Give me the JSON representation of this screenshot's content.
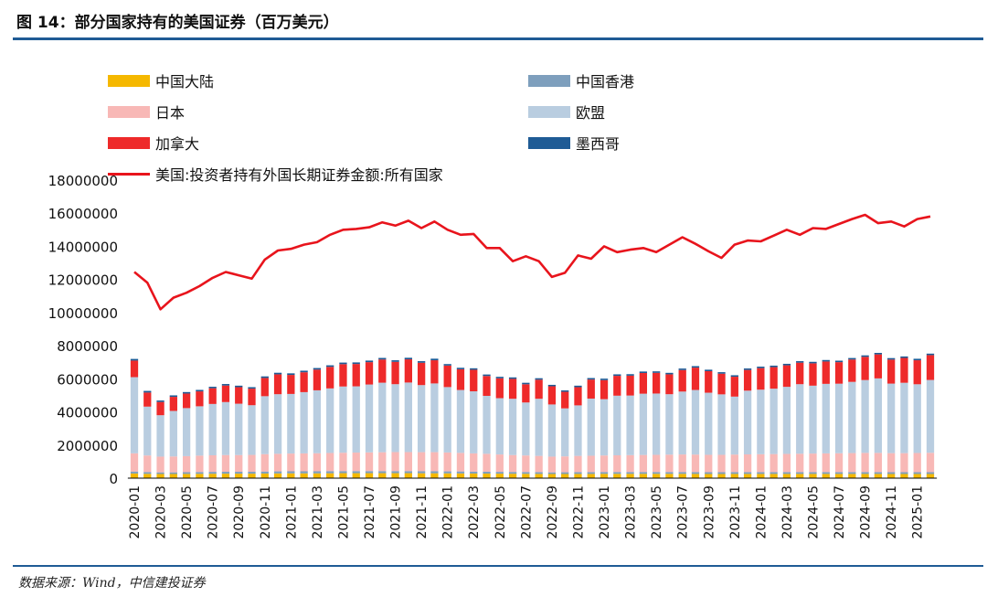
{
  "header": {
    "title": "图 14：部分国家持有的美国证券（百万美元）"
  },
  "footer": {
    "source": "数据来源：Wind，中信建投证券"
  },
  "colors": {
    "china": "#f5b800",
    "hongkong": "#7e9fbd",
    "japan": "#f8b8b6",
    "eu": "#b9cde0",
    "canada": "#ee2a2a",
    "mexico": "#1f5b95",
    "total": "#e8141c",
    "header_rule": "#1f5b95"
  },
  "chart_data": {
    "type": "bar",
    "stacked": true,
    "x": [
      "2020-01",
      "2020-02",
      "2020-03",
      "2020-04",
      "2020-05",
      "2020-06",
      "2020-07",
      "2020-08",
      "2020-09",
      "2020-10",
      "2020-11",
      "2020-12",
      "2021-01",
      "2021-02",
      "2021-03",
      "2021-04",
      "2021-05",
      "2021-06",
      "2021-07",
      "2021-08",
      "2021-09",
      "2021-10",
      "2021-11",
      "2021-12",
      "2022-01",
      "2022-02",
      "2022-03",
      "2022-04",
      "2022-05",
      "2022-06",
      "2022-07",
      "2022-08",
      "2022-09",
      "2022-10",
      "2022-11",
      "2022-12",
      "2023-01",
      "2023-02",
      "2023-03",
      "2023-04",
      "2023-05",
      "2023-06",
      "2023-07",
      "2023-08",
      "2023-09",
      "2023-10",
      "2023-11",
      "2023-12",
      "2024-01",
      "2024-02",
      "2024-03",
      "2024-04",
      "2024-05",
      "2024-06",
      "2024-07",
      "2024-08",
      "2024-09",
      "2024-10",
      "2024-11",
      "2024-12",
      "2025-01",
      "2025-02"
    ],
    "x_tick_labels": [
      "2020-01",
      "2020-03",
      "2020-05",
      "2020-07",
      "2020-09",
      "2020-11",
      "2021-01",
      "2021-03",
      "2021-05",
      "2021-07",
      "2021-09",
      "2021-11",
      "2022-01",
      "2022-03",
      "2022-05",
      "2022-07",
      "2022-09",
      "2022-11",
      "2023-01",
      "2023-03",
      "2023-05",
      "2023-07",
      "2023-09",
      "2023-11",
      "2024-01",
      "2024-03",
      "2024-05",
      "2024-07",
      "2024-09",
      "2024-11",
      "2025-01"
    ],
    "y_ticks": [
      "0",
      "2000000",
      "4000000",
      "6000000",
      "8000000",
      "10000000",
      "12000000",
      "14000000",
      "16000000",
      "18000000"
    ],
    "ylim": [
      0,
      18000000
    ],
    "legend_position": "top",
    "series": [
      {
        "name": "中国大陆",
        "color_key": "china",
        "values": [
          280000,
          260000,
          250000,
          250000,
          255000,
          260000,
          265000,
          270000,
          270000,
          270000,
          280000,
          285000,
          290000,
          290000,
          290000,
          295000,
          300000,
          300000,
          300000,
          300000,
          300000,
          300000,
          295000,
          295000,
          290000,
          285000,
          280000,
          275000,
          270000,
          265000,
          260000,
          255000,
          250000,
          250000,
          255000,
          255000,
          260000,
          260000,
          260000,
          260000,
          260000,
          260000,
          260000,
          255000,
          250000,
          250000,
          255000,
          255000,
          255000,
          255000,
          255000,
          255000,
          255000,
          255000,
          255000,
          255000,
          255000,
          255000,
          250000,
          250000,
          250000,
          250000
        ]
      },
      {
        "name": "中国香港",
        "color_key": "hongkong",
        "values": [
          120000,
          110000,
          100000,
          100000,
          105000,
          110000,
          115000,
          115000,
          115000,
          115000,
          120000,
          125000,
          125000,
          125000,
          125000,
          125000,
          125000,
          125000,
          125000,
          125000,
          125000,
          125000,
          125000,
          125000,
          120000,
          120000,
          115000,
          115000,
          110000,
          110000,
          110000,
          110000,
          100000,
          105000,
          110000,
          110000,
          110000,
          110000,
          110000,
          110000,
          110000,
          110000,
          110000,
          110000,
          110000,
          110000,
          110000,
          110000,
          110000,
          110000,
          110000,
          110000,
          110000,
          110000,
          110000,
          110000,
          110000,
          110000,
          110000,
          110000,
          110000,
          110000
        ]
      },
      {
        "name": "日本",
        "color_key": "japan",
        "values": [
          1100000,
          1000000,
          950000,
          960000,
          970000,
          990000,
          1000000,
          1010000,
          1010000,
          1020000,
          1050000,
          1060000,
          1070000,
          1080000,
          1090000,
          1100000,
          1110000,
          1120000,
          1130000,
          1140000,
          1150000,
          1150000,
          1150000,
          1150000,
          1140000,
          1120000,
          1100000,
          1080000,
          1050000,
          1020000,
          1000000,
          980000,
          950000,
          960000,
          980000,
          990000,
          1000000,
          1010000,
          1020000,
          1030000,
          1040000,
          1050000,
          1060000,
          1060000,
          1050000,
          1050000,
          1060000,
          1070000,
          1080000,
          1090000,
          1100000,
          1110000,
          1120000,
          1130000,
          1140000,
          1150000,
          1160000,
          1160000,
          1150000,
          1150000,
          1160000,
          1170000
        ]
      },
      {
        "name": "欧盟",
        "color_key": "eu",
        "values": [
          4600000,
          2950000,
          2500000,
          2750000,
          2900000,
          2980000,
          3100000,
          3200000,
          3100000,
          3000000,
          3500000,
          3600000,
          3600000,
          3700000,
          3800000,
          3900000,
          4000000,
          4000000,
          4100000,
          4200000,
          4100000,
          4200000,
          4050000,
          4150000,
          3950000,
          3800000,
          3750000,
          3500000,
          3400000,
          3400000,
          3200000,
          3450000,
          3150000,
          2900000,
          3050000,
          3450000,
          3400000,
          3600000,
          3600000,
          3700000,
          3700000,
          3650000,
          3800000,
          3900000,
          3750000,
          3650000,
          3500000,
          3850000,
          3900000,
          3950000,
          4050000,
          4200000,
          4100000,
          4200000,
          4200000,
          4300000,
          4400000,
          4500000,
          4200000,
          4250000,
          4150000,
          4400000
        ]
      },
      {
        "name": "加拿大",
        "color_key": "canada",
        "values": [
          1000000,
          850000,
          800000,
          850000,
          880000,
          900000,
          950000,
          1000000,
          1000000,
          1000000,
          1100000,
          1200000,
          1150000,
          1200000,
          1250000,
          1300000,
          1350000,
          1350000,
          1350000,
          1400000,
          1350000,
          1400000,
          1350000,
          1400000,
          1300000,
          1250000,
          1300000,
          1200000,
          1200000,
          1200000,
          1100000,
          1150000,
          1100000,
          1000000,
          1100000,
          1150000,
          1150000,
          1200000,
          1200000,
          1250000,
          1250000,
          1200000,
          1300000,
          1350000,
          1300000,
          1250000,
          1200000,
          1250000,
          1300000,
          1300000,
          1300000,
          1300000,
          1350000,
          1350000,
          1300000,
          1350000,
          1400000,
          1450000,
          1450000,
          1500000,
          1450000,
          1500000
        ]
      },
      {
        "name": "墨西哥",
        "color_key": "mexico",
        "values": [
          100000,
          100000,
          90000,
          90000,
          90000,
          90000,
          90000,
          90000,
          90000,
          90000,
          95000,
          95000,
          95000,
          95000,
          95000,
          95000,
          95000,
          95000,
          95000,
          95000,
          95000,
          95000,
          95000,
          95000,
          90000,
          90000,
          90000,
          90000,
          90000,
          90000,
          90000,
          90000,
          85000,
          85000,
          90000,
          90000,
          90000,
          90000,
          90000,
          90000,
          90000,
          90000,
          90000,
          90000,
          90000,
          90000,
          90000,
          90000,
          90000,
          90000,
          90000,
          90000,
          90000,
          90000,
          90000,
          90000,
          90000,
          90000,
          90000,
          90000,
          90000,
          90000
        ]
      },
      {
        "name": "美国:投资者持有外国长期证券金额:所有国家",
        "color_key": "total",
        "type": "line",
        "values": [
          12450000,
          11800000,
          10200000,
          10900000,
          11200000,
          11600000,
          12100000,
          12450000,
          12250000,
          12050000,
          13200000,
          13750000,
          13850000,
          14100000,
          14250000,
          14700000,
          15000000,
          15050000,
          15150000,
          15450000,
          15250000,
          15550000,
          15100000,
          15500000,
          15000000,
          14700000,
          14750000,
          13900000,
          13900000,
          13100000,
          13400000,
          13100000,
          12150000,
          12400000,
          13450000,
          13250000,
          14000000,
          13650000,
          13800000,
          13900000,
          13650000,
          14100000,
          14550000,
          14150000,
          13700000,
          13300000,
          14100000,
          14350000,
          14300000,
          14650000,
          15000000,
          14700000,
          15100000,
          15050000,
          15350000,
          15650000,
          15900000,
          15400000,
          15500000,
          15200000,
          15650000,
          15800000
        ]
      }
    ]
  }
}
